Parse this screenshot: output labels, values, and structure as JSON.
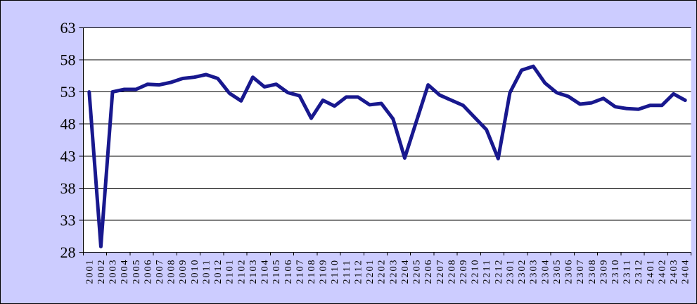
{
  "chart_data": {
    "type": "line",
    "categories": [
      "2001",
      "2002",
      "2003",
      "2004",
      "2005",
      "2006",
      "2007",
      "2008",
      "2009",
      "2010",
      "2011",
      "2012",
      "2101",
      "2102",
      "2103",
      "2104",
      "2105",
      "2106",
      "2107",
      "2108",
      "2109",
      "2110",
      "2111",
      "2112",
      "2201",
      "2202",
      "2203",
      "2204",
      "2205",
      "2206",
      "2207",
      "2208",
      "2209",
      "2210",
      "2211",
      "2212",
      "2301",
      "2302",
      "2303",
      "2304",
      "2305",
      "2306",
      "2307",
      "2308",
      "2309",
      "2310",
      "2311",
      "2312",
      "2401",
      "2402",
      "2403",
      "2404"
    ],
    "values": [
      53.0,
      28.9,
      53.0,
      53.4,
      53.4,
      54.2,
      54.1,
      54.5,
      55.1,
      55.3,
      55.7,
      55.1,
      52.8,
      51.6,
      55.3,
      53.8,
      54.2,
      52.9,
      52.4,
      48.9,
      51.7,
      50.8,
      52.2,
      52.2,
      51.0,
      51.2,
      48.8,
      42.7,
      48.4,
      54.1,
      52.5,
      51.7,
      50.9,
      49.0,
      47.1,
      42.6,
      52.9,
      56.4,
      57.0,
      54.4,
      52.9,
      52.3,
      51.1,
      51.3,
      52.0,
      50.7,
      50.4,
      50.3,
      50.9,
      50.9,
      52.7,
      51.7
    ],
    "title": "",
    "xlabel": "",
    "ylabel": "",
    "ylim": [
      28,
      63
    ],
    "ytick_step": 5,
    "ytick_labels": [
      "63",
      "58",
      "53",
      "48",
      "43",
      "38",
      "33",
      "28"
    ],
    "xtick_mark_interval": 2,
    "grid": true,
    "legend_position": "none",
    "colors": {
      "canvas_background": "#ccccff",
      "plot_background": "#ffffff",
      "series_line": "#18188e",
      "axis_and_grid": "#000000"
    }
  }
}
